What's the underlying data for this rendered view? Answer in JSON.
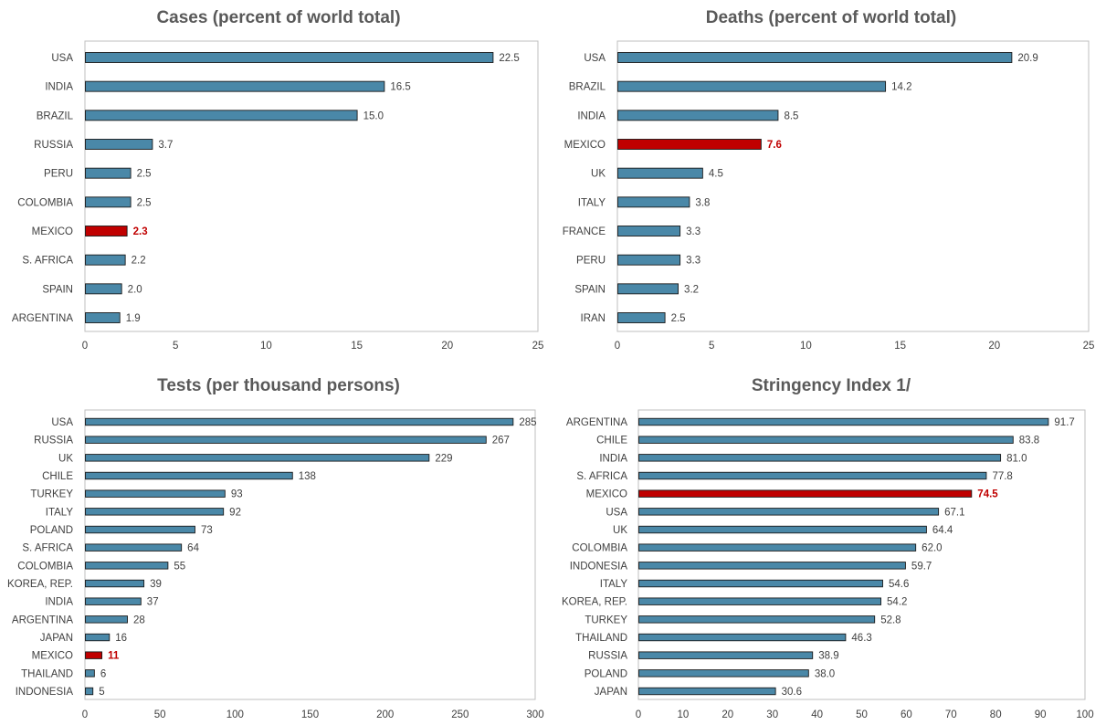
{
  "colors": {
    "bar": "#4a88a8",
    "highlight": "#c00000",
    "outline": "#1a1a1a",
    "frame": "#bfbfbf"
  },
  "chart_data": [
    {
      "type": "bar",
      "orientation": "horizontal",
      "title": "Cases (percent of world total)",
      "categories": [
        "USA",
        "INDIA",
        "BRAZIL",
        "RUSSIA",
        "PERU",
        "COLOMBIA",
        "MEXICO",
        "S. AFRICA",
        "SPAIN",
        "ARGENTINA"
      ],
      "values": [
        22.5,
        16.5,
        15.0,
        3.7,
        2.5,
        2.5,
        2.3,
        2.2,
        2.0,
        1.9
      ],
      "value_labels": [
        "22.5",
        "16.5",
        "15.0",
        "3.7",
        "2.5",
        "2.5",
        "2.3",
        "2.2",
        "2.0",
        "1.9"
      ],
      "highlight": "MEXICO",
      "xlim": [
        0,
        25
      ],
      "xticks": [
        0,
        5,
        10,
        15,
        20,
        25
      ],
      "grid": false
    },
    {
      "type": "bar",
      "orientation": "horizontal",
      "title": "Deaths (percent of world total)",
      "categories": [
        "USA",
        "BRAZIL",
        "INDIA",
        "MEXICO",
        "UK",
        "ITALY",
        "FRANCE",
        "PERU",
        "SPAIN",
        "IRAN"
      ],
      "values": [
        20.9,
        14.2,
        8.5,
        7.6,
        4.5,
        3.8,
        3.3,
        3.3,
        3.2,
        2.5
      ],
      "value_labels": [
        "20.9",
        "14.2",
        "8.5",
        "7.6",
        "4.5",
        "3.8",
        "3.3",
        "3.3",
        "3.2",
        "2.5"
      ],
      "highlight": "MEXICO",
      "xlim": [
        0,
        25
      ],
      "xticks": [
        0,
        5,
        10,
        15,
        20,
        25
      ],
      "grid": false
    },
    {
      "type": "bar",
      "orientation": "horizontal",
      "title": "Tests (per thousand persons)",
      "categories": [
        "USA",
        "RUSSIA",
        "UK",
        "CHILE",
        "TURKEY",
        "ITALY",
        "POLAND",
        "S. AFRICA",
        "COLOMBIA",
        "KOREA, REP.",
        "INDIA",
        "ARGENTINA",
        "JAPAN",
        "MEXICO",
        "THAILAND",
        "INDONESIA"
      ],
      "values": [
        285,
        267,
        229,
        138,
        93,
        92,
        73,
        64,
        55,
        39,
        37,
        28,
        16,
        11,
        6,
        5
      ],
      "value_labels": [
        "285",
        "267",
        "229",
        "138",
        "93",
        "92",
        "73",
        "64",
        "55",
        "39",
        "37",
        "28",
        "16",
        "11",
        "6",
        "5"
      ],
      "highlight": "MEXICO",
      "xlim": [
        0,
        300
      ],
      "xticks": [
        0,
        50,
        100,
        150,
        200,
        250,
        300
      ],
      "grid": false
    },
    {
      "type": "bar",
      "orientation": "horizontal",
      "title": "Stringency Index 1/",
      "categories": [
        "ARGENTINA",
        "CHILE",
        "INDIA",
        "S. AFRICA",
        "MEXICO",
        "USA",
        "UK",
        "COLOMBIA",
        "INDONESIA",
        "ITALY",
        "KOREA, REP.",
        "TURKEY",
        "THAILAND",
        "RUSSIA",
        "POLAND",
        "JAPAN"
      ],
      "values": [
        91.7,
        83.8,
        81.0,
        77.8,
        74.5,
        67.1,
        64.4,
        62.0,
        59.7,
        54.6,
        54.2,
        52.8,
        46.3,
        38.9,
        38.0,
        30.6
      ],
      "value_labels": [
        "91.7",
        "83.8",
        "81.0",
        "77.8",
        "74.5",
        "67.1",
        "64.4",
        "62.0",
        "59.7",
        "54.6",
        "54.2",
        "52.8",
        "46.3",
        "38.9",
        "38.0",
        "30.6"
      ],
      "highlight": "MEXICO",
      "xlim": [
        0,
        100
      ],
      "xticks": [
        0,
        10,
        20,
        30,
        40,
        50,
        60,
        70,
        80,
        90,
        100
      ],
      "grid": false
    }
  ]
}
